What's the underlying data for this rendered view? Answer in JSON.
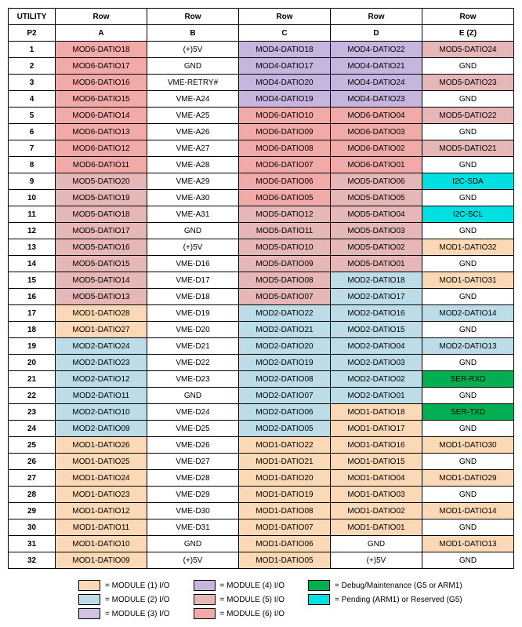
{
  "colors": {
    "m1": "#fcd9b6",
    "m2": "#bcdce8",
    "m3": "#d0c2e0",
    "m4": "#c6b6df",
    "m5": "#e5b7b6",
    "m6": "#f1aaa8",
    "debug": "#00b050",
    "pending": "#00e0e0",
    "none": "#ffffff",
    "border": "#000000",
    "text": "#000000"
  },
  "header": {
    "utility": "UTILITY",
    "rowLabel": "Row",
    "p2": "P2",
    "cols": [
      "A",
      "B",
      "C",
      "D",
      "E (Z)"
    ]
  },
  "rows": [
    {
      "n": "1",
      "A": [
        "MOD6-DATIO18",
        "m6"
      ],
      "B": [
        "(+)5V",
        "none"
      ],
      "C": [
        "MOD4-DATIO18",
        "m4"
      ],
      "D": [
        "MOD4-DATIO22",
        "m4"
      ],
      "E": [
        "MOD5-DATIO24",
        "m5"
      ]
    },
    {
      "n": "2",
      "A": [
        "MOD6-DATIO17",
        "m6"
      ],
      "B": [
        "GND",
        "none"
      ],
      "C": [
        "MOD4-DATIO17",
        "m4"
      ],
      "D": [
        "MOD4-DATIO21",
        "m4"
      ],
      "E": [
        "GND",
        "none"
      ]
    },
    {
      "n": "3",
      "A": [
        "MOD6-DATIO16",
        "m6"
      ],
      "B": [
        "VME-RETRY#",
        "none"
      ],
      "C": [
        "MOD4-DATIO20",
        "m4"
      ],
      "D": [
        "MOD4-DATIO24",
        "m4"
      ],
      "E": [
        "MOD5-DATIO23",
        "m5"
      ]
    },
    {
      "n": "4",
      "A": [
        "MOD6-DATIO15",
        "m6"
      ],
      "B": [
        "VME-A24",
        "none"
      ],
      "C": [
        "MOD4-DATIO19",
        "m4"
      ],
      "D": [
        "MOD4-DATIO23",
        "m4"
      ],
      "E": [
        "GND",
        "none"
      ]
    },
    {
      "n": "5",
      "A": [
        "MOD6-DATIO14",
        "m6"
      ],
      "B": [
        "VME-A25",
        "none"
      ],
      "C": [
        "MOD6-DATIO10",
        "m6"
      ],
      "D": [
        "MOD6-DATIO04",
        "m6"
      ],
      "E": [
        "MOD5-DATIO22",
        "m5"
      ]
    },
    {
      "n": "6",
      "A": [
        "MOD6-DATIO13",
        "m6"
      ],
      "B": [
        "VME-A26",
        "none"
      ],
      "C": [
        "MOD6-DATIO09",
        "m6"
      ],
      "D": [
        "MOD6-DATIO03",
        "m6"
      ],
      "E": [
        "GND",
        "none"
      ]
    },
    {
      "n": "7",
      "A": [
        "MOD6-DATIO12",
        "m6"
      ],
      "B": [
        "VME-A27",
        "none"
      ],
      "C": [
        "MOD6-DATIO08",
        "m6"
      ],
      "D": [
        "MOD6-DATIO02",
        "m6"
      ],
      "E": [
        "MOD5-DATIO21",
        "m5"
      ]
    },
    {
      "n": "8",
      "A": [
        "MOD6-DATIO11",
        "m6"
      ],
      "B": [
        "VME-A28",
        "none"
      ],
      "C": [
        "MOD6-DATIO07",
        "m6"
      ],
      "D": [
        "MOD6-DATIO01",
        "m6"
      ],
      "E": [
        "GND",
        "none"
      ]
    },
    {
      "n": "9",
      "A": [
        "MOD5-DATIO20",
        "m5"
      ],
      "B": [
        "VME-A29",
        "none"
      ],
      "C": [
        "MOD6-DATIO06",
        "m6"
      ],
      "D": [
        "MOD5-DATIO06",
        "m5"
      ],
      "E": [
        "I2C-SDA",
        "pending"
      ]
    },
    {
      "n": "10",
      "A": [
        "MOD5-DATIO19",
        "m5"
      ],
      "B": [
        "VME-A30",
        "none"
      ],
      "C": [
        "MOD6-DATIO05",
        "m6"
      ],
      "D": [
        "MOD5-DATIO05",
        "m5"
      ],
      "E": [
        "GND",
        "none"
      ]
    },
    {
      "n": "11",
      "A": [
        "MOD5-DATIO18",
        "m5"
      ],
      "B": [
        "VME-A31",
        "none"
      ],
      "C": [
        "MOD5-DATIO12",
        "m5"
      ],
      "D": [
        "MOD5-DATIO04",
        "m5"
      ],
      "E": [
        "I2C-SCL",
        "pending"
      ]
    },
    {
      "n": "12",
      "A": [
        "MOD5-DATIO17",
        "m5"
      ],
      "B": [
        "GND",
        "none"
      ],
      "C": [
        "MOD5-DATIO11",
        "m5"
      ],
      "D": [
        "MOD5-DATIO03",
        "m5"
      ],
      "E": [
        "GND",
        "none"
      ]
    },
    {
      "n": "13",
      "A": [
        "MOD5-DATIO16",
        "m5"
      ],
      "B": [
        "(+)5V",
        "none"
      ],
      "C": [
        "MOD5-DATIO10",
        "m5"
      ],
      "D": [
        "MOD5-DATIO02",
        "m5"
      ],
      "E": [
        "MOD1-DATIO32",
        "m1"
      ]
    },
    {
      "n": "14",
      "A": [
        "MOD5-DATIO15",
        "m5"
      ],
      "B": [
        "VME-D16",
        "none"
      ],
      "C": [
        "MOD5-DATIO09",
        "m5"
      ],
      "D": [
        "MOD5-DATIO01",
        "m5"
      ],
      "E": [
        "GND",
        "none"
      ]
    },
    {
      "n": "15",
      "A": [
        "MOD5-DATIO14",
        "m5"
      ],
      "B": [
        "VME-D17",
        "none"
      ],
      "C": [
        "MOD5-DATIO08",
        "m5"
      ],
      "D": [
        "MOD2-DATIO18",
        "m2"
      ],
      "E": [
        "MOD1-DATIO31",
        "m1"
      ]
    },
    {
      "n": "16",
      "A": [
        "MOD5-DATIO13",
        "m5"
      ],
      "B": [
        "VME-D18",
        "none"
      ],
      "C": [
        "MOD5-DATIO07",
        "m5"
      ],
      "D": [
        "MOD2-DATIO17",
        "m2"
      ],
      "E": [
        "GND",
        "none"
      ]
    },
    {
      "n": "17",
      "A": [
        "MOD1-DATIO28",
        "m1"
      ],
      "B": [
        "VME-D19",
        "none"
      ],
      "C": [
        "MOD2-DATIO22",
        "m2"
      ],
      "D": [
        "MOD2-DATIO16",
        "m2"
      ],
      "E": [
        "MOD2-DATIO14",
        "m2"
      ]
    },
    {
      "n": "18",
      "A": [
        "MOD1-DATIO27",
        "m1"
      ],
      "B": [
        "VME-D20",
        "none"
      ],
      "C": [
        "MOD2-DATIO21",
        "m2"
      ],
      "D": [
        "MOD2-DATIO15",
        "m2"
      ],
      "E": [
        "GND",
        "none"
      ]
    },
    {
      "n": "19",
      "A": [
        "MOD2-DATIO24",
        "m2"
      ],
      "B": [
        "VME-D21",
        "none"
      ],
      "C": [
        "MOD2-DATIO20",
        "m2"
      ],
      "D": [
        "MOD2-DATIO04",
        "m2"
      ],
      "E": [
        "MOD2-DATIO13",
        "m2"
      ]
    },
    {
      "n": "20",
      "A": [
        "MOD2-DATIO23",
        "m2"
      ],
      "B": [
        "VME-D22",
        "none"
      ],
      "C": [
        "MOD2-DATIO19",
        "m2"
      ],
      "D": [
        "MOD2-DATIO03",
        "m2"
      ],
      "E": [
        "GND",
        "none"
      ]
    },
    {
      "n": "21",
      "A": [
        "MOD2-DATIO12",
        "m2"
      ],
      "B": [
        "VME-D23",
        "none"
      ],
      "C": [
        "MOD2-DATIO08",
        "m2"
      ],
      "D": [
        "MOD2-DATIO02",
        "m2"
      ],
      "E": [
        "SER-RXD",
        "debug"
      ]
    },
    {
      "n": "22",
      "A": [
        "MOD2-DATIO11",
        "m2"
      ],
      "B": [
        "GND",
        "none"
      ],
      "C": [
        "MOD2-DATIO07",
        "m2"
      ],
      "D": [
        "MOD2-DATIO01",
        "m2"
      ],
      "E": [
        "GND",
        "none"
      ]
    },
    {
      "n": "23",
      "A": [
        "MOD2-DATIO10",
        "m2"
      ],
      "B": [
        "VME-D24",
        "none"
      ],
      "C": [
        "MOD2-DATIO06",
        "m2"
      ],
      "D": [
        "MOD1-DATIO18",
        "m1"
      ],
      "E": [
        "SER-TXD",
        "debug"
      ]
    },
    {
      "n": "24",
      "A": [
        "MOD2-DATIO09",
        "m2"
      ],
      "B": [
        "VME-D25",
        "none"
      ],
      "C": [
        "MOD2-DATIO05",
        "m2"
      ],
      "D": [
        "MOD1-DATIO17",
        "m1"
      ],
      "E": [
        "GND",
        "none"
      ]
    },
    {
      "n": "25",
      "A": [
        "MOD1-DATIO26",
        "m1"
      ],
      "B": [
        "VME-D26",
        "none"
      ],
      "C": [
        "MOD1-DATIO22",
        "m1"
      ],
      "D": [
        "MOD1-DATIO16",
        "m1"
      ],
      "E": [
        "MOD1-DATIO30",
        "m1"
      ]
    },
    {
      "n": "26",
      "A": [
        "MOD1-DATIO25",
        "m1"
      ],
      "B": [
        "VME-D27",
        "none"
      ],
      "C": [
        "MOD1-DATIO21",
        "m1"
      ],
      "D": [
        "MOD1-DATIO15",
        "m1"
      ],
      "E": [
        "GND",
        "none"
      ]
    },
    {
      "n": "27",
      "A": [
        "MOD1-DATIO24",
        "m1"
      ],
      "B": [
        "VME-D28",
        "none"
      ],
      "C": [
        "MOD1-DATIO20",
        "m1"
      ],
      "D": [
        "MOD1-DATIO04",
        "m1"
      ],
      "E": [
        "MOD1-DATIO29",
        "m1"
      ]
    },
    {
      "n": "28",
      "A": [
        "MOD1-DATIO23",
        "m1"
      ],
      "B": [
        "VME-D29",
        "none"
      ],
      "C": [
        "MOD1-DATIO19",
        "m1"
      ],
      "D": [
        "MOD1-DATIO03",
        "m1"
      ],
      "E": [
        "GND",
        "none"
      ]
    },
    {
      "n": "29",
      "A": [
        "MOD1-DATIO12",
        "m1"
      ],
      "B": [
        "VME-D30",
        "none"
      ],
      "C": [
        "MOD1-DATIO08",
        "m1"
      ],
      "D": [
        "MOD1-DATIO02",
        "m1"
      ],
      "E": [
        "MOD1-DATIO14",
        "m1"
      ]
    },
    {
      "n": "30",
      "A": [
        "MOD1-DATIO11",
        "m1"
      ],
      "B": [
        "VME-D31",
        "none"
      ],
      "C": [
        "MOD1-DATIO07",
        "m1"
      ],
      "D": [
        "MOD1-DATIO01",
        "m1"
      ],
      "E": [
        "GND",
        "none"
      ]
    },
    {
      "n": "31",
      "A": [
        "MOD1-DATIO10",
        "m1"
      ],
      "B": [
        "GND",
        "none"
      ],
      "C": [
        "MOD1-DATIO06",
        "m1"
      ],
      "D": [
        "GND",
        "none"
      ],
      "E": [
        "MOD1-DATIO13",
        "m1"
      ]
    },
    {
      "n": "32",
      "A": [
        "MOD1-DATIO09",
        "m1"
      ],
      "B": [
        "(+)5V",
        "none"
      ],
      "C": [
        "MOD1-DATIO05",
        "m1"
      ],
      "D": [
        "(+)5V",
        "none"
      ],
      "E": [
        "GND",
        "none"
      ]
    }
  ],
  "legend": [
    [
      [
        "m1",
        "= MODULE (1) I/O"
      ],
      [
        "m2",
        "= MODULE (2) I/O"
      ],
      [
        "m3",
        "= MODULE (3) I/O"
      ]
    ],
    [
      [
        "m4",
        "= MODULE (4) I/O"
      ],
      [
        "m5",
        "= MODULE (5) I/O"
      ],
      [
        "m6",
        "= MODULE (6) I/O"
      ]
    ],
    [
      [
        "debug",
        "= Debug/Maintenance (G5 or ARM1)"
      ],
      [
        "pending",
        "= Pending (ARM1) or Reserved (G5)"
      ]
    ]
  ]
}
